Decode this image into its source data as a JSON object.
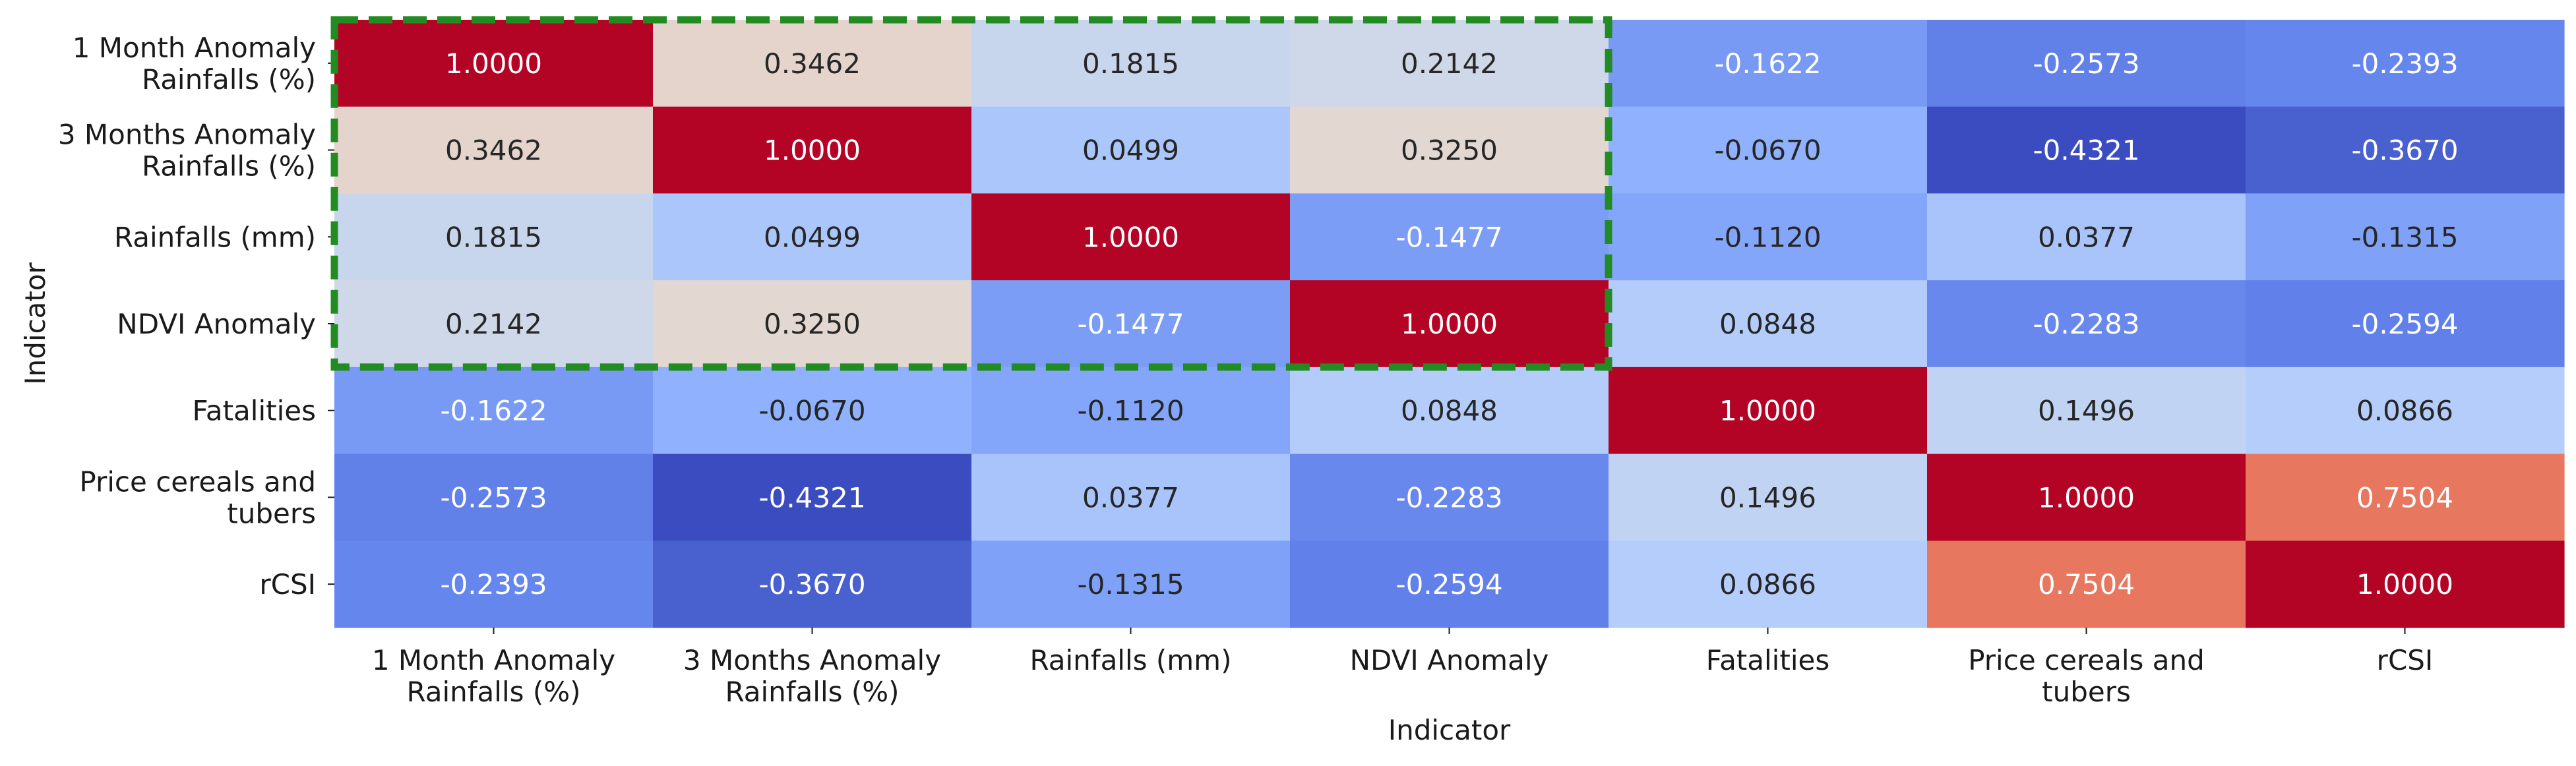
{
  "chart_data": {
    "type": "heatmap",
    "title": "",
    "xlabel": "Indicator",
    "ylabel": "Indicator",
    "x_categories": [
      [
        "1 Month Anomaly",
        "Rainfalls (%)"
      ],
      [
        "3 Months Anomaly",
        "Rainfalls (%)"
      ],
      [
        "Rainfalls (mm)"
      ],
      [
        "NDVI Anomaly"
      ],
      [
        "Fatalities"
      ],
      [
        "Price cereals and",
        "tubers"
      ],
      [
        "rCSI"
      ]
    ],
    "y_categories": [
      [
        "1 Month Anomaly",
        "Rainfalls (%)"
      ],
      [
        "3 Months Anomaly",
        "Rainfalls (%)"
      ],
      [
        "Rainfalls (mm)"
      ],
      [
        "NDVI Anomaly"
      ],
      [
        "Fatalities"
      ],
      [
        "Price cereals and",
        "tubers"
      ],
      [
        "rCSI"
      ]
    ],
    "values": [
      [
        1.0,
        0.3462,
        0.1815,
        0.2142,
        -0.1622,
        -0.2573,
        -0.2393
      ],
      [
        0.3462,
        1.0,
        0.0499,
        0.325,
        -0.067,
        -0.4321,
        -0.367
      ],
      [
        0.1815,
        0.0499,
        1.0,
        -0.1477,
        -0.112,
        0.0377,
        -0.1315
      ],
      [
        0.2142,
        0.325,
        -0.1477,
        1.0,
        0.0848,
        -0.2283,
        -0.2594
      ],
      [
        -0.1622,
        -0.067,
        -0.112,
        0.0848,
        1.0,
        0.1496,
        0.0866
      ],
      [
        -0.2573,
        -0.4321,
        0.0377,
        -0.2283,
        0.1496,
        1.0,
        0.7504
      ],
      [
        -0.2393,
        -0.367,
        -0.1315,
        -0.2594,
        0.0866,
        0.7504,
        1.0
      ]
    ],
    "value_format_decimals": 4,
    "colormap": "coolwarm",
    "color_range": [
      -0.4321,
      1.0
    ],
    "colorbar": false,
    "highlight_box": {
      "rows": [
        0,
        3
      ],
      "cols": [
        0,
        3
      ],
      "style": "dashed",
      "color": "#228b22"
    }
  }
}
